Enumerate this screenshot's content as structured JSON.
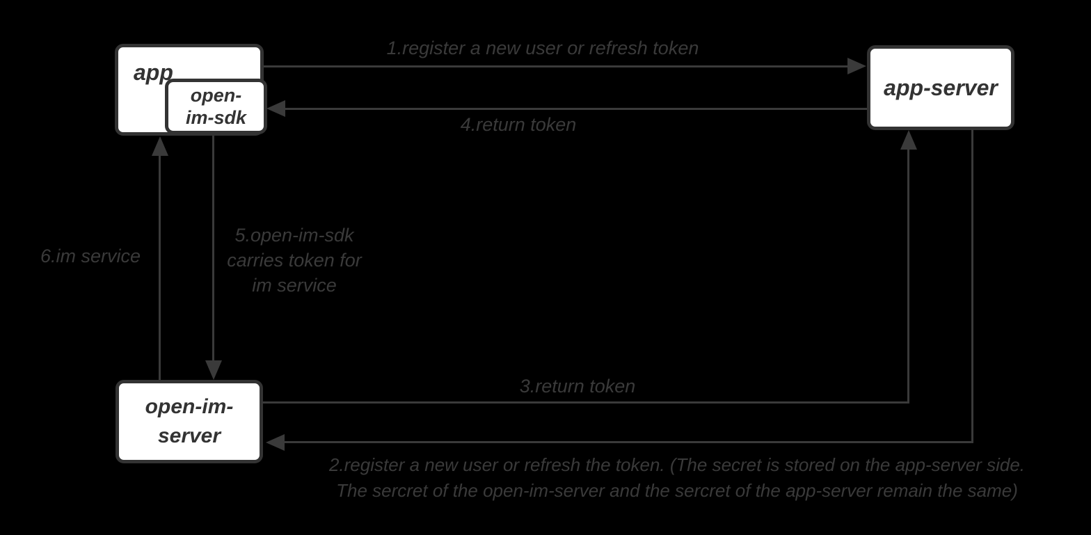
{
  "diagram": {
    "title": "open-im token flow diagram",
    "colors": {
      "background": "#000000",
      "line": "#3a3a3a",
      "box_border": "#333333",
      "box_fill": "#ffffff",
      "label_text": "#3a3a3a",
      "box_text": "#333333"
    },
    "nodes": {
      "app": {
        "label": "app"
      },
      "open_im_sdk": {
        "line1": "open-",
        "line2": "im-sdk"
      },
      "app_server": {
        "label": "app-server"
      },
      "open_im_server": {
        "line1": "open-im-",
        "line2": "server"
      }
    },
    "edges": {
      "e1": {
        "label": "1.register a new user or refresh token",
        "from": "app",
        "to": "app-server"
      },
      "e2": {
        "line1": "2.register a new user or refresh the token. (The secret is stored on the app-server side.",
        "line2": "The sercret of the open-im-server and the sercret of the app-server remain the same)",
        "from": "app-server",
        "to": "open-im-server"
      },
      "e3": {
        "label": "3.return token",
        "from": "open-im-server",
        "to": "app-server"
      },
      "e4": {
        "label": "4.return token",
        "from": "app-server",
        "to": "open-im-sdk"
      },
      "e5": {
        "line1": "5.open-im-sdk",
        "line2": "carries token for",
        "line3": "im service",
        "from": "open-im-sdk",
        "to": "open-im-server"
      },
      "e6": {
        "label": "6.im service",
        "from": "open-im-server",
        "to": "app"
      }
    }
  }
}
